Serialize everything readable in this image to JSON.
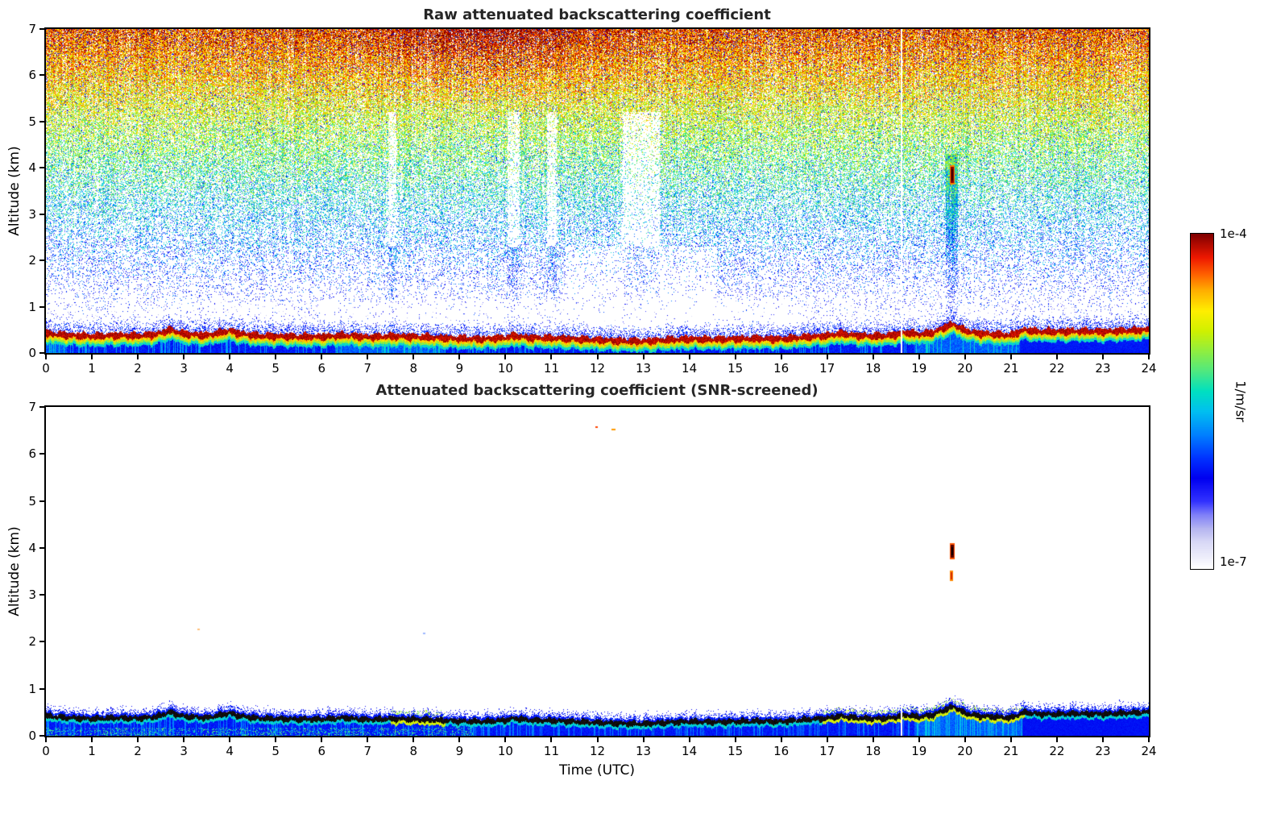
{
  "colorbar": {
    "label": "1/m/sr",
    "max_label": "1e-4",
    "min_label": "1e-7",
    "cmap_stops": [
      [
        0.0,
        "#ffffff"
      ],
      [
        0.04,
        "#ebebfa"
      ],
      [
        0.08,
        "#d8d8f6"
      ],
      [
        0.12,
        "#b4b4f0"
      ],
      [
        0.16,
        "#8080f8"
      ],
      [
        0.2,
        "#3333ff"
      ],
      [
        0.27,
        "#0000f0"
      ],
      [
        0.33,
        "#0033ff"
      ],
      [
        0.4,
        "#0080ff"
      ],
      [
        0.47,
        "#00c0f0"
      ],
      [
        0.53,
        "#00e0c0"
      ],
      [
        0.59,
        "#50e880"
      ],
      [
        0.65,
        "#90ee40"
      ],
      [
        0.71,
        "#d0f000"
      ],
      [
        0.77,
        "#ffee00"
      ],
      [
        0.83,
        "#ffb000"
      ],
      [
        0.88,
        "#ff6000"
      ],
      [
        0.93,
        "#ee1800"
      ],
      [
        1.0,
        "#7f0000"
      ]
    ]
  },
  "chart_data": [
    {
      "type": "heatmap",
      "title": "Raw attenuated backscattering coefficient",
      "xlabel": "",
      "ylabel": "Altitude (km)",
      "xlim": [
        0,
        24
      ],
      "ylim": [
        0,
        7
      ],
      "xticks": [
        0,
        1,
        2,
        3,
        4,
        5,
        6,
        7,
        8,
        9,
        10,
        11,
        12,
        13,
        14,
        15,
        16,
        17,
        18,
        19,
        20,
        21,
        22,
        23,
        24
      ],
      "yticks": [
        0,
        1,
        2,
        3,
        4,
        5,
        6,
        7
      ],
      "value_min_label": "1e-7",
      "value_max_label": "1e-4",
      "units": "1/m/sr",
      "boundary_layer": {
        "t_utc": [
          0,
          0.5,
          1,
          1.5,
          2,
          2.4,
          2.7,
          3,
          3.5,
          4,
          4.2,
          4.6,
          5,
          5.5,
          6,
          6.5,
          7,
          7.5,
          8,
          8.5,
          9,
          9.5,
          10,
          10.2,
          10.5,
          11,
          11.5,
          12,
          12.5,
          13,
          13.5,
          14,
          14.5,
          15,
          15.5,
          16,
          16.5,
          17,
          17.3,
          17.6,
          18,
          18.4,
          18.7,
          19,
          19.3,
          19.55,
          19.75,
          20,
          20.3,
          20.7,
          21,
          21.3,
          21.6,
          22,
          22.5,
          23,
          23.5,
          24
        ],
        "height_km": [
          0.42,
          0.38,
          0.36,
          0.38,
          0.37,
          0.4,
          0.5,
          0.41,
          0.38,
          0.48,
          0.42,
          0.37,
          0.36,
          0.35,
          0.35,
          0.38,
          0.34,
          0.36,
          0.35,
          0.33,
          0.31,
          0.3,
          0.33,
          0.37,
          0.33,
          0.32,
          0.3,
          0.28,
          0.26,
          0.25,
          0.28,
          0.3,
          0.29,
          0.3,
          0.31,
          0.3,
          0.34,
          0.37,
          0.42,
          0.38,
          0.36,
          0.38,
          0.44,
          0.4,
          0.44,
          0.55,
          0.62,
          0.48,
          0.42,
          0.4,
          0.38,
          0.5,
          0.46,
          0.46,
          0.47,
          0.46,
          0.48,
          0.5
        ]
      },
      "clear_air_bands_t": [
        [
          7.45,
          7.62
        ],
        [
          10.05,
          10.3
        ],
        [
          10.9,
          11.12
        ],
        [
          12.55,
          13.35
        ]
      ],
      "gap_line_t": 18.62,
      "elevated_plume": {
        "t": 19.72,
        "alt_km": [
          3.68,
          4.03
        ]
      }
    },
    {
      "type": "heatmap",
      "title": "Attenuated backscattering coefficient (SNR-screened)",
      "xlabel": "Time (UTC)",
      "ylabel": "Altitude (km)",
      "xlim": [
        0,
        24
      ],
      "ylim": [
        0,
        7
      ],
      "xticks": [
        0,
        1,
        2,
        3,
        4,
        5,
        6,
        7,
        8,
        9,
        10,
        11,
        12,
        13,
        14,
        15,
        16,
        17,
        18,
        19,
        20,
        21,
        22,
        23,
        24
      ],
      "yticks": [
        0,
        1,
        2,
        3,
        4,
        5,
        6,
        7
      ],
      "value_min_label": "1e-7",
      "value_max_label": "1e-4",
      "units": "1/m/sr",
      "boundary_layer": {
        "t_utc": [
          0,
          0.5,
          1,
          1.5,
          2,
          2.4,
          2.7,
          3,
          3.5,
          4,
          4.2,
          4.6,
          5,
          5.5,
          6,
          6.5,
          7,
          7.5,
          8,
          8.5,
          9,
          9.5,
          10,
          10.2,
          10.5,
          11,
          11.5,
          12,
          12.5,
          13,
          13.5,
          14,
          14.5,
          15,
          15.5,
          16,
          16.5,
          17,
          17.3,
          17.6,
          18,
          18.4,
          18.7,
          19,
          19.3,
          19.55,
          19.75,
          20,
          20.3,
          20.7,
          21,
          21.3,
          21.6,
          22,
          22.5,
          23,
          23.5,
          24
        ],
        "height_km": [
          0.42,
          0.38,
          0.36,
          0.38,
          0.37,
          0.4,
          0.5,
          0.41,
          0.38,
          0.48,
          0.42,
          0.37,
          0.36,
          0.35,
          0.35,
          0.38,
          0.34,
          0.36,
          0.35,
          0.33,
          0.31,
          0.3,
          0.33,
          0.37,
          0.33,
          0.32,
          0.3,
          0.28,
          0.26,
          0.25,
          0.28,
          0.3,
          0.29,
          0.3,
          0.31,
          0.3,
          0.34,
          0.37,
          0.42,
          0.38,
          0.36,
          0.38,
          0.44,
          0.4,
          0.44,
          0.55,
          0.62,
          0.48,
          0.42,
          0.4,
          0.38,
          0.5,
          0.46,
          0.46,
          0.47,
          0.46,
          0.48,
          0.5
        ]
      },
      "gap_line_t": 18.62,
      "elevated_plumes": [
        {
          "t": 19.73,
          "alt_km": [
            3.79,
            4.06
          ]
        },
        {
          "t": 19.71,
          "alt_km": [
            3.3,
            3.52
          ]
        }
      ],
      "specks": [
        {
          "t": 11.95,
          "alt_km": 6.58
        },
        {
          "t": 12.3,
          "alt_km": 6.54
        },
        {
          "t": 3.3,
          "alt_km": 2.28
        },
        {
          "t": 8.2,
          "alt_km": 2.2
        }
      ]
    }
  ]
}
